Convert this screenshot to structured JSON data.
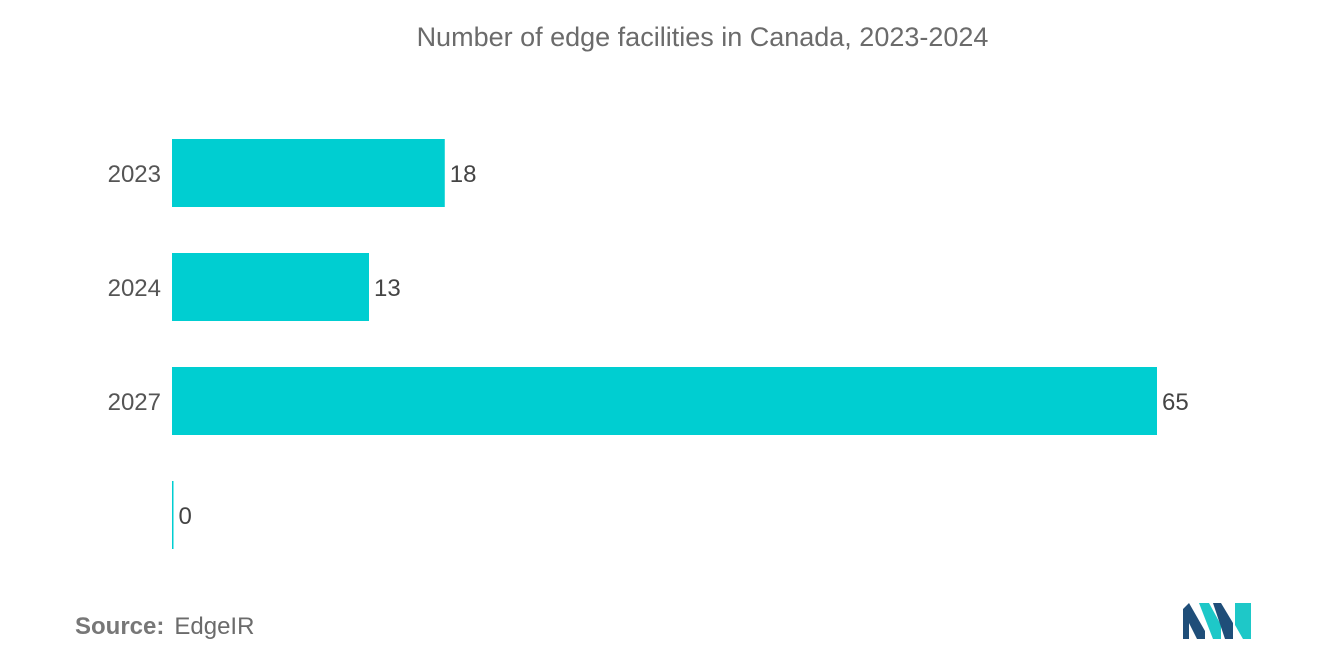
{
  "chart_data": {
    "type": "bar",
    "orientation": "horizontal",
    "title": "Number of edge facilities in Canada, 2023-2024",
    "categories": [
      "2023",
      "2024",
      "2027",
      ""
    ],
    "values": [
      18,
      13,
      65,
      0
    ],
    "value_labels": [
      "18",
      "13",
      "65",
      "0"
    ],
    "xlim": [
      0,
      65
    ],
    "xlabel": "",
    "ylabel": "",
    "grid": false,
    "legend": "none",
    "bar_color": "#00CED1"
  },
  "source": {
    "label": "Source:",
    "text": "EdgeIR"
  },
  "logo": {
    "icon": "mordor-intelligence-logo-icon",
    "colors": [
      "#1f4e79",
      "#1ec8c8"
    ]
  }
}
